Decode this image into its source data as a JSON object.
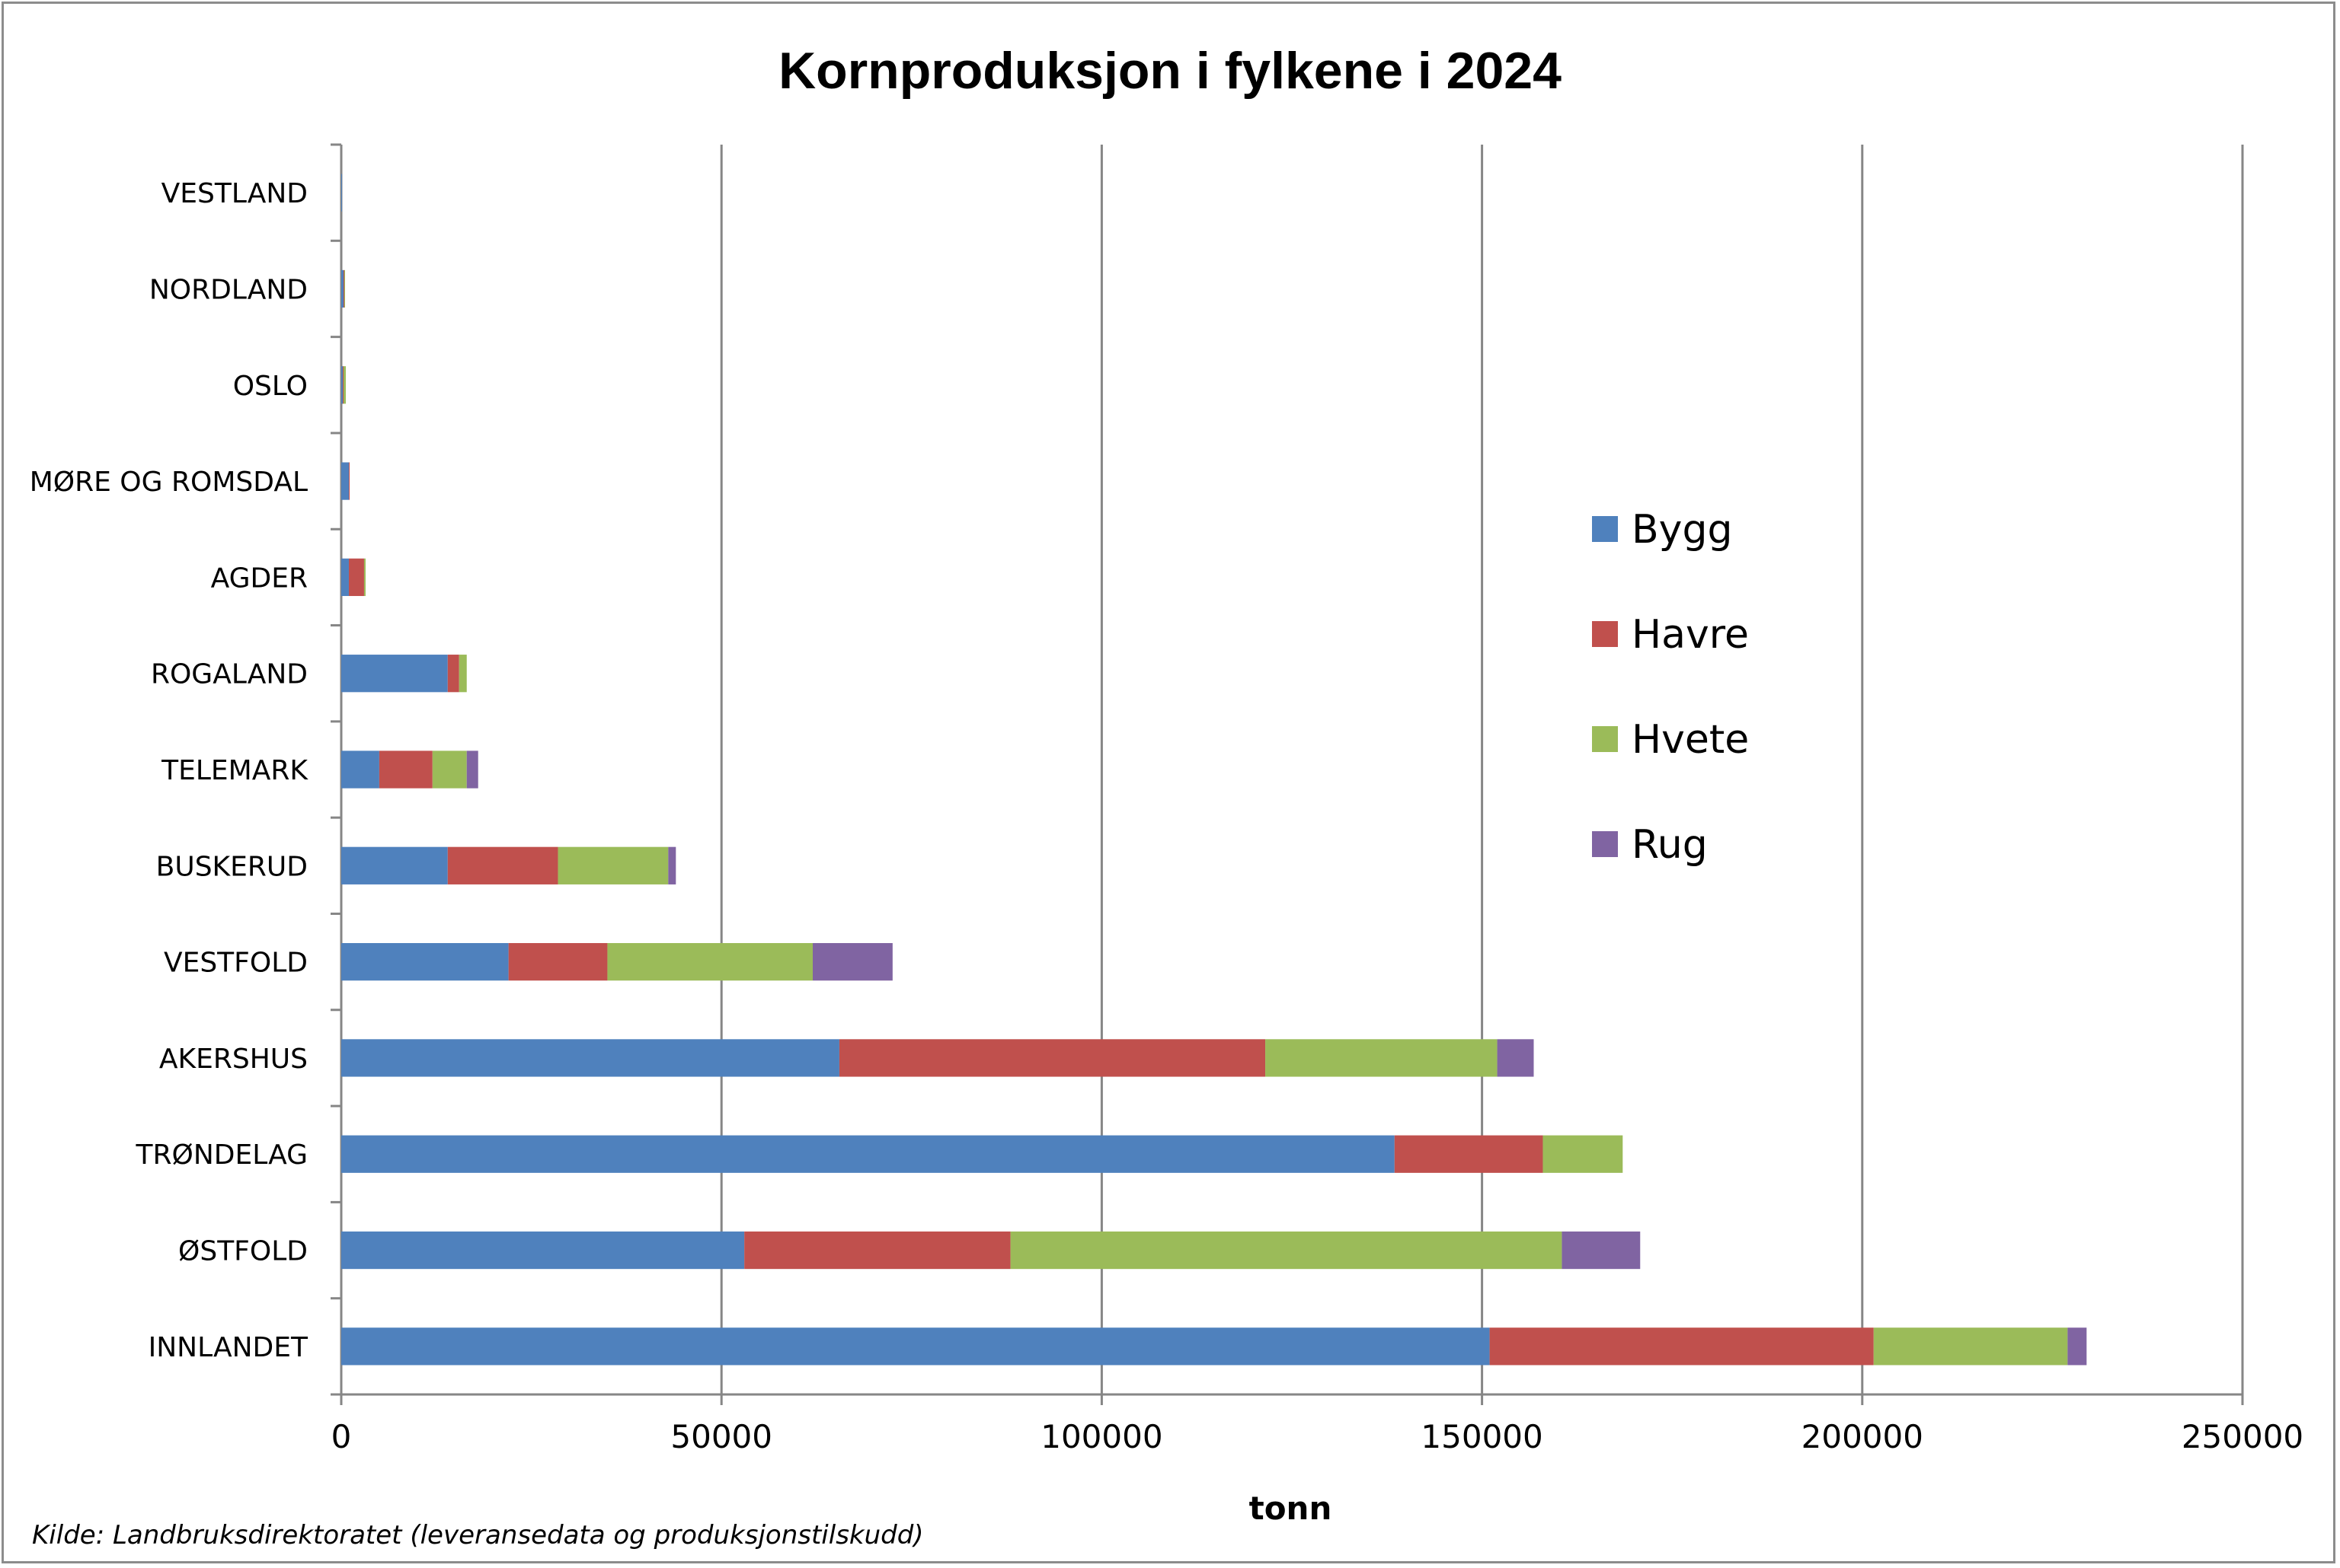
{
  "chart_data": {
    "type": "bar",
    "orientation": "horizontal",
    "stacked": true,
    "title": "Kornproduksjon i fylkene i 2024",
    "xlabel": "tonn",
    "ylabel": "",
    "xlim": [
      0,
      250000
    ],
    "xticks": [
      "0",
      "50000",
      "100000",
      "150000",
      "200000",
      "250000"
    ],
    "xtick_values": [
      0,
      50000,
      100000,
      150000,
      200000,
      250000
    ],
    "grid": "vertical",
    "legend_position": "right",
    "categories": [
      "VESTLAND",
      "NORDLAND",
      "OSLO",
      "MØRE OG ROMSDAL",
      "AGDER",
      "ROGALAND",
      "TELEMARK",
      "BUSKERUD",
      "VESTFOLD",
      "AKERSHUS",
      "TRØNDELAG",
      "ØSTFOLD",
      "INNLANDET"
    ],
    "series": [
      {
        "name": "Bygg",
        "color": "#4f81bd",
        "values": [
          100,
          300,
          200,
          1000,
          1000,
          14000,
          5000,
          14000,
          22000,
          65500,
          138500,
          53000,
          151000
        ]
      },
      {
        "name": "Havre",
        "color": "#c0504d",
        "values": [
          0,
          100,
          100,
          100,
          2000,
          1500,
          7000,
          14500,
          13000,
          56000,
          19500,
          35000,
          50500
        ]
      },
      {
        "name": "Hvete",
        "color": "#9bbb59",
        "values": [
          0,
          100,
          300,
          0,
          200,
          1000,
          4500,
          14500,
          27000,
          30500,
          10500,
          72500,
          25500
        ]
      },
      {
        "name": "Rug",
        "color": "#8064a2",
        "values": [
          0,
          0,
          0,
          0,
          0,
          0,
          1500,
          1000,
          10500,
          4800,
          0,
          10300,
          2500
        ]
      }
    ]
  },
  "source_note": "Kilde: Landbruksdirektoratet (leveransedata og produksjonstilskudd)"
}
